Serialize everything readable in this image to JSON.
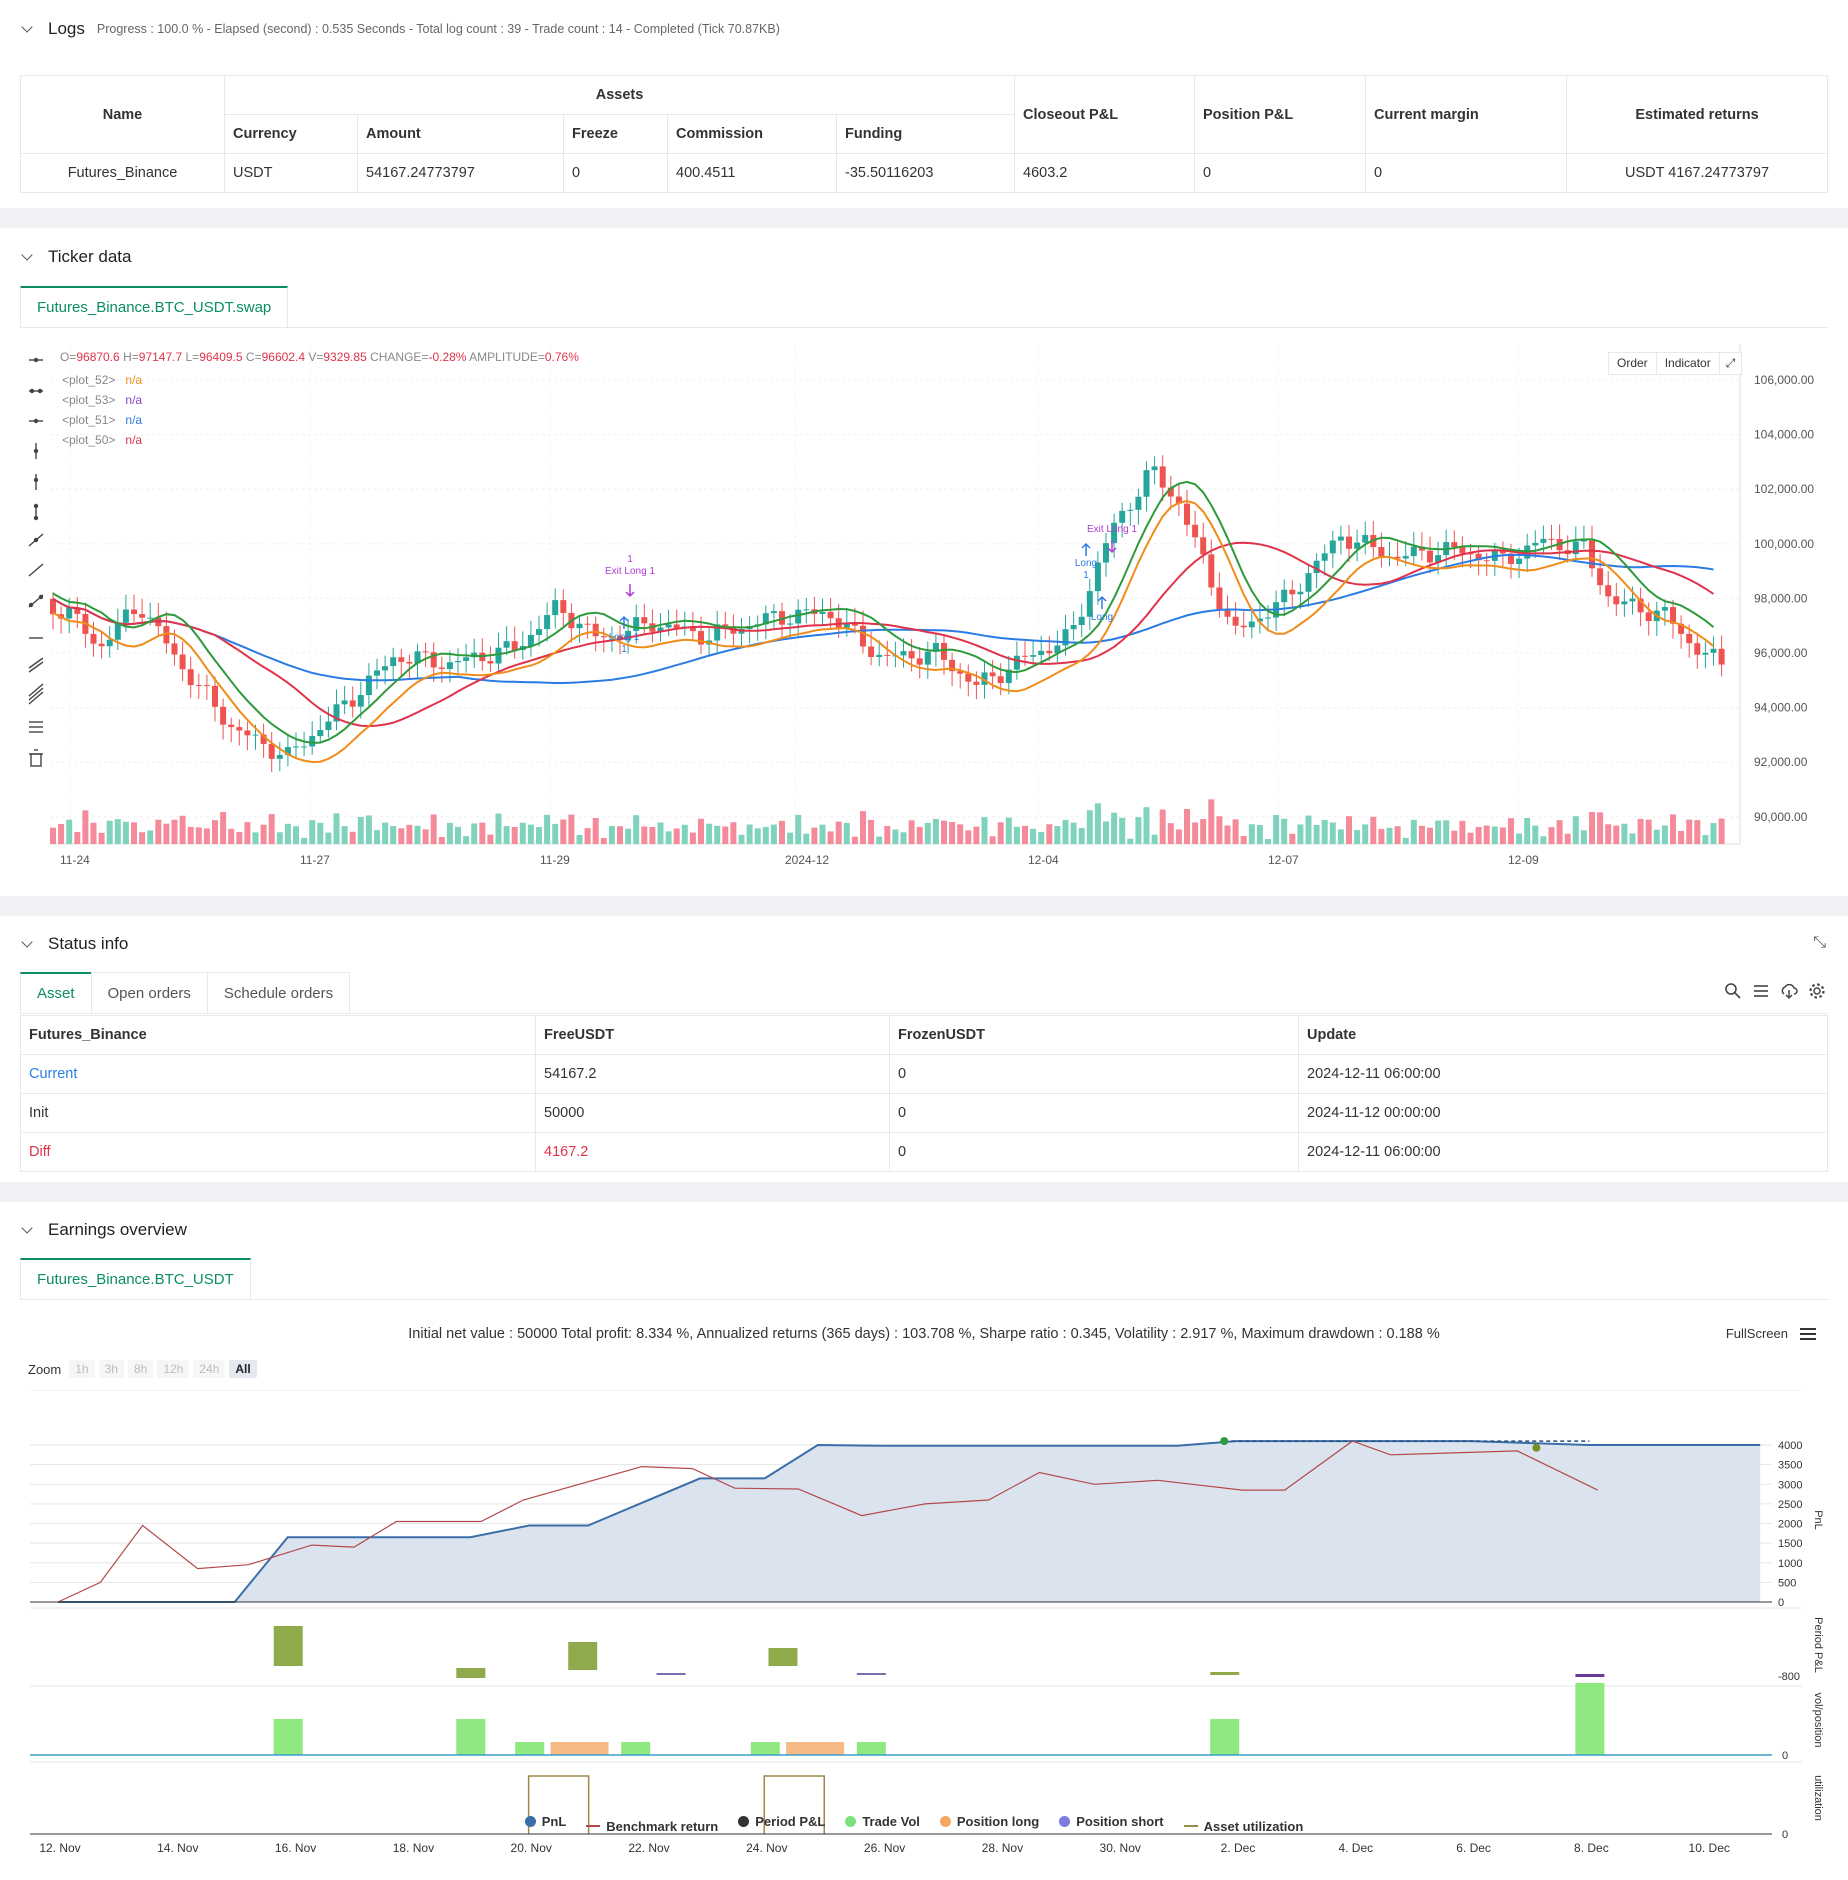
{
  "logs": {
    "title": "Logs",
    "subtitle": "Progress : 100.0 % - Elapsed (second) : 0.535  Seconds - Total log count : 39 - Trade count : 14 - Completed (Tick 70.87KB)",
    "table": {
      "group_header": "Assets",
      "headers": {
        "name": "Name",
        "currency": "Currency",
        "amount": "Amount",
        "freeze": "Freeze",
        "commission": "Commission",
        "funding": "Funding",
        "closeout": "Closeout P&L",
        "position": "Position P&L",
        "margin": "Current margin",
        "returns": "Estimated returns"
      },
      "row": {
        "name": "Futures_Binance",
        "currency": "USDT",
        "amount": "54167.24773797",
        "freeze": "0",
        "commission": "400.4511",
        "funding": "-35.50116203",
        "closeout": "4603.2",
        "position": "0",
        "margin": "0",
        "returns": "USDT 4167.24773797"
      }
    }
  },
  "ticker": {
    "title": "Ticker data",
    "tab": "Futures_Binance.BTC_USDT.swap",
    "ohlc": {
      "o_label": "O=",
      "o": "96870.6",
      "h_label": "H=",
      "h": "97147.7",
      "l_label": "L=",
      "l": "96409.5",
      "c_label": "C=",
      "c": "96602.4",
      "v_label": "V=",
      "v": "9329.85",
      "change_label": "CHANGE=",
      "change": "-0.28%",
      "amp_label": "AMPLITUDE=",
      "amp": "0.76%"
    },
    "plots": [
      {
        "name": "<plot_52>",
        "value": "n/a",
        "color": "#f08c1a"
      },
      {
        "name": "<plot_53>",
        "value": "n/a",
        "color": "#8a46c8"
      },
      {
        "name": "<plot_51>",
        "value": "n/a",
        "color": "#2a7be4"
      },
      {
        "name": "<plot_50>",
        "value": "n/a",
        "color": "#e0334a"
      }
    ],
    "buttons": {
      "order": "Order",
      "indicator": "Indicator"
    },
    "y_ticks": [
      "106,000.00",
      "104,000.00",
      "102,000.00",
      "100,000.00",
      "98,000.00",
      "96,000.00",
      "94,000.00",
      "92,000.00",
      "90,000.00"
    ],
    "x_ticks": [
      "11-24",
      "11-27",
      "11-29",
      "2024-12",
      "12-04",
      "12-07",
      "12-09"
    ],
    "annotations": {
      "long1": "Long 1",
      "one": "1",
      "exit_long": "Exit Long 1",
      "long": "Long"
    }
  },
  "status": {
    "title": "Status info",
    "tabs": [
      "Asset",
      "Open orders",
      "Schedule orders"
    ],
    "headers": [
      "Futures_Binance",
      "FreeUSDT",
      "FrozenUSDT",
      "Update"
    ],
    "rows": [
      {
        "label": "Current",
        "free": "54167.2",
        "frozen": "0",
        "update": "2024-12-11 06:00:00"
      },
      {
        "label": "Init",
        "free": "50000",
        "frozen": "0",
        "update": "2024-11-12 00:00:00"
      },
      {
        "label": "Diff",
        "free": "4167.2",
        "frozen": "0",
        "update": "2024-12-11 06:00:00"
      }
    ]
  },
  "earnings": {
    "title": "Earnings overview",
    "tab": "Futures_Binance.BTC_USDT",
    "summary": "Initial net value : 50000  Total profit: 8.334 %, Annualized returns (365 days) : 103.708 %, Sharpe ratio : 0.345, Volatility : 2.917 %, Maximum drawdown : 0.188 %",
    "fullscreen": "FullScreen",
    "zoom_label": "Zoom",
    "zoom_buttons": [
      "1h",
      "3h",
      "8h",
      "12h",
      "24h",
      "All"
    ],
    "pnl_ticks": [
      "4000",
      "3500",
      "3000",
      "2500",
      "2000",
      "1500",
      "1000",
      "500",
      "0"
    ],
    "period_tick": "-800",
    "vol_tick": "0",
    "util_tick": "0",
    "axis_titles": [
      "PnL",
      "Period P&L",
      "vol/position",
      "utilization"
    ],
    "x_ticks": [
      "12. Nov",
      "14. Nov",
      "16. Nov",
      "18. Nov",
      "20. Nov",
      "22. Nov",
      "24. Nov",
      "26. Nov",
      "28. Nov",
      "30. Nov",
      "2. Dec",
      "4. Dec",
      "6. Dec",
      "8. Dec",
      "10. Dec"
    ],
    "legend": [
      {
        "name": "PnL",
        "color": "#3a6ea8",
        "shape": "dot"
      },
      {
        "name": "Benchmark return",
        "color": "#b34a4a",
        "shape": "line"
      },
      {
        "name": "Period P&L",
        "color": "#333333",
        "shape": "dot"
      },
      {
        "name": "Trade Vol",
        "color": "#7ee07e",
        "shape": "dot"
      },
      {
        "name": "Position long",
        "color": "#f2a860",
        "shape": "dot"
      },
      {
        "name": "Position short",
        "color": "#7b7be0",
        "shape": "dot"
      },
      {
        "name": "Asset utilization",
        "color": "#9b8a4a",
        "shape": "line"
      }
    ]
  },
  "colors": {
    "accent": "#0b8f5f",
    "up": "#26a69a",
    "down": "#ef5350"
  }
}
